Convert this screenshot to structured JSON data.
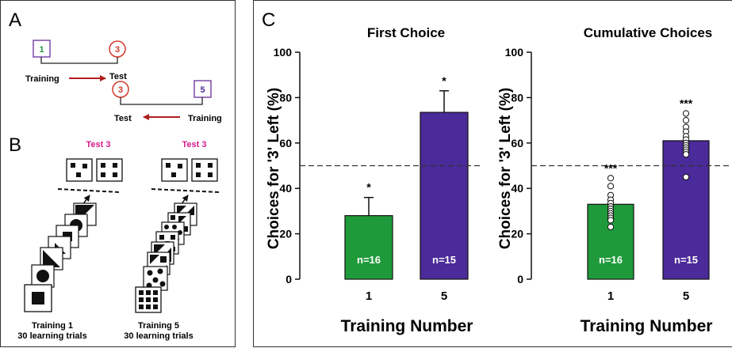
{
  "panel_a": {
    "letter": "A",
    "top_left_box": "1",
    "top_right_circle": "3",
    "training_label_top": "Training",
    "test_label_top": "Test",
    "bottom_left_circle": "3",
    "bottom_right_box": "5",
    "test_label_bottom": "Test",
    "training_label_bottom": "Training"
  },
  "panel_b": {
    "letter": "B",
    "left_test_label": "Test 3",
    "right_test_label": "Test 3",
    "left_caption_line1": "Training 1",
    "left_caption_line2": "30 learning trials",
    "right_caption_line1": "Training 5",
    "right_caption_line2": "30 learning trials"
  },
  "panel_c": {
    "letter": "C",
    "ylabel": "Choices for '3' Left (%)",
    "xlabel": "Training Number"
  },
  "colors": {
    "green": "#1f9a3a",
    "purple": "#4b2a9a",
    "arrow_red": "#b01e1e",
    "pink": "#d61c8c",
    "dashed": "#333333"
  },
  "chart_data": [
    {
      "type": "bar",
      "title": "First Choice",
      "categories": [
        "1",
        "5"
      ],
      "values": [
        28,
        73.5
      ],
      "errors": [
        8,
        9.5
      ],
      "significance": [
        "*",
        "*"
      ],
      "bar_labels": [
        "n=16",
        "n=15"
      ],
      "bar_colors": [
        "#1f9a3a",
        "#4b2a9a"
      ],
      "ylim": [
        0,
        100
      ],
      "yticks": [
        0,
        20,
        40,
        60,
        80,
        100
      ],
      "reference_line": 50,
      "xlabel": "Training Number",
      "ylabel": "Choices for '3' Left (%)"
    },
    {
      "type": "bar",
      "title": "Cumulative Choices",
      "categories": [
        "1",
        "5"
      ],
      "values": [
        33,
        61
      ],
      "significance": [
        "***",
        "***"
      ],
      "bar_labels": [
        "n=16",
        "n=15"
      ],
      "bar_colors": [
        "#1f9a3a",
        "#4b2a9a"
      ],
      "points": [
        [
          44.5,
          41,
          37,
          35,
          33.5,
          32,
          31,
          30,
          29,
          28,
          27,
          26,
          23
        ],
        [
          73,
          70,
          67,
          65,
          63,
          61.5,
          60,
          59,
          58,
          57,
          56,
          55,
          45
        ]
      ],
      "ylim": [
        0,
        100
      ],
      "yticks": [
        0,
        20,
        40,
        60,
        80,
        100
      ],
      "reference_line": 50,
      "xlabel": "Training Number",
      "ylabel": "Choices for '3' Left (%)"
    }
  ]
}
